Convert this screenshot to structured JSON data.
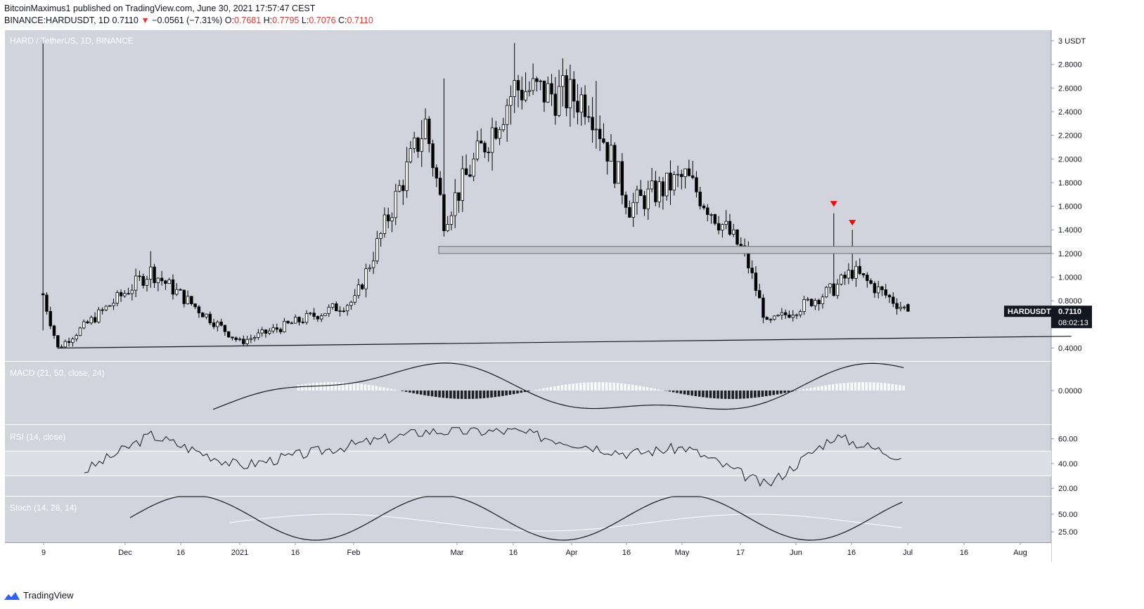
{
  "header": {
    "publisher_line": "BitcoinMaximus1 published on TradingView.com, June 30, 2021 17:57:47 CEST",
    "symbol": "BINANCE:HARDUSDT, 1D",
    "last": "0.7110",
    "change_arrow": "▼",
    "change": "−0.0561 (−7.31%)",
    "open_label": "O:",
    "open": "0.7681",
    "high_label": "H:",
    "high": "0.7795",
    "low_label": "L:",
    "low": "0.7076",
    "close_label": "C:",
    "close": "0.7110"
  },
  "footer": {
    "brand": "TradingView",
    "logo_icon": "tradingview-logo-icon"
  },
  "colors": {
    "panel_bg": "#d1d4dc",
    "candle": "#000000",
    "zone_fill": "#c4c6cc",
    "marker": "#ff0000",
    "rsi_band": "#dcdfe4",
    "stoch_signal": "#ffffff",
    "macd_pos": "#ffffff",
    "macd_neg": "#000000"
  },
  "chart_data": [
    {
      "type": "candlestick",
      "title": "HARD / TetherUS, 1D, BINANCE",
      "ylim": [
        0.3,
        3.0
      ],
      "y_ticks": [
        "3 USDT",
        "2.8000",
        "2.6000",
        "2.4000",
        "2.2000",
        "2.0000",
        "1.8000",
        "1.6000",
        "1.4000",
        "1.2000",
        "1.0000",
        "0.8000",
        "0.6000",
        "0.4000"
      ],
      "y_tick_values": [
        3.0,
        2.8,
        2.6,
        2.4,
        2.2,
        2.0,
        1.8,
        1.6,
        1.4,
        1.2,
        1.0,
        0.8,
        0.6,
        0.4
      ],
      "x_ticks": [
        "9",
        "Dec",
        "16",
        "2021",
        "16",
        "Feb",
        "Mar",
        "16",
        "Apr",
        "16",
        "May",
        "17",
        "Jun",
        "16",
        "Jul",
        "16",
        "Aug"
      ],
      "price_label": {
        "symbol": "HARDUSDT",
        "value": "0.7110",
        "countdown": "08:02:13"
      },
      "key_points": [
        {
          "date": "2020-11-09",
          "close": 0.85
        },
        {
          "date": "2020-11-13",
          "close": 0.4
        },
        {
          "date": "2020-12-08",
          "close": 1.05
        },
        {
          "date": "2021-01-01",
          "close": 0.45
        },
        {
          "date": "2021-02-01",
          "close": 0.8
        },
        {
          "date": "2021-02-20",
          "close": 2.3
        },
        {
          "date": "2021-02-25",
          "close": 1.5
        },
        {
          "date": "2021-03-16",
          "close": 2.6
        },
        {
          "date": "2021-04-05",
          "close": 2.5
        },
        {
          "date": "2021-04-16",
          "close": 1.6
        },
        {
          "date": "2021-05-01",
          "close": 1.85
        },
        {
          "date": "2021-05-17",
          "close": 1.2
        },
        {
          "date": "2021-05-23",
          "close": 0.6
        },
        {
          "date": "2021-06-10",
          "close": 0.9
        },
        {
          "date": "2021-06-15",
          "close": 1.05
        },
        {
          "date": "2021-06-30",
          "close": 0.711
        }
      ],
      "horizontal_zone": {
        "from": 1.2,
        "to": 1.26
      },
      "trendline": {
        "start": {
          "date": "2020-11-13",
          "price": 0.4
        },
        "end": {
          "date": "2021-08-13",
          "price": 0.5
        }
      },
      "markers": [
        {
          "date": "2021-06-10",
          "price": 1.62,
          "shape": "down-triangle"
        },
        {
          "date": "2021-06-15",
          "price": 1.46,
          "shape": "down-triangle"
        }
      ]
    },
    {
      "type": "histogram+line",
      "title": "MACD (21, 50, close, 24)",
      "y_ticks": [
        "0.0000"
      ],
      "y_tick_values": [
        0.0
      ]
    },
    {
      "type": "line",
      "title": "RSI (14, close)",
      "ylim": [
        15,
        70
      ],
      "y_ticks": [
        "60.00",
        "40.00",
        "20.00"
      ],
      "y_tick_values": [
        60,
        40,
        20
      ],
      "band": [
        30,
        50
      ],
      "key_points": [
        {
          "date": "2020-12-08",
          "value": 63
        },
        {
          "date": "2021-01-01",
          "value": 38
        },
        {
          "date": "2021-02-20",
          "value": 66
        },
        {
          "date": "2021-03-16",
          "value": 66
        },
        {
          "date": "2021-04-16",
          "value": 48
        },
        {
          "date": "2021-05-01",
          "value": 53
        },
        {
          "date": "2021-05-23",
          "value": 22
        },
        {
          "date": "2021-06-10",
          "value": 62
        },
        {
          "date": "2021-06-30",
          "value": 44
        }
      ]
    },
    {
      "type": "line",
      "title": "Stoch (14, 28, 14)",
      "ylim": [
        10,
        75
      ],
      "y_ticks": [
        "50.00",
        "25.00"
      ],
      "y_tick_values": [
        50,
        25
      ]
    }
  ]
}
